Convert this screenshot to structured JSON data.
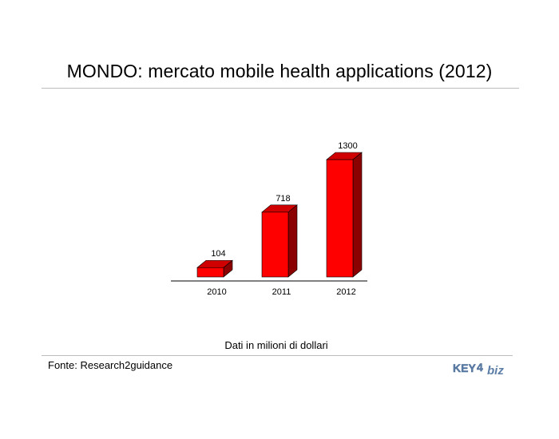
{
  "title": "MONDO: mercato mobile health applications (2012)",
  "note": "Dati in milioni di dollari",
  "source": "Fonte: Research2guidance",
  "logo": {
    "text_key": "KEY",
    "text_digit": "4",
    "text_biz": "biz"
  },
  "colors": {
    "bar_front": "#ff0000",
    "bar_side": "#8b0000",
    "bar_top": "#d00000"
  },
  "chart_data": {
    "type": "bar",
    "categories": [
      "2010",
      "2011",
      "2012"
    ],
    "values": [
      104,
      718,
      1300
    ],
    "data_labels": [
      "104",
      "718",
      "1300"
    ],
    "title": "MONDO: mercato mobile health applications (2012)",
    "xlabel": "",
    "ylabel": "",
    "ylim": [
      0,
      1300
    ],
    "grid": false,
    "legend": "none"
  }
}
